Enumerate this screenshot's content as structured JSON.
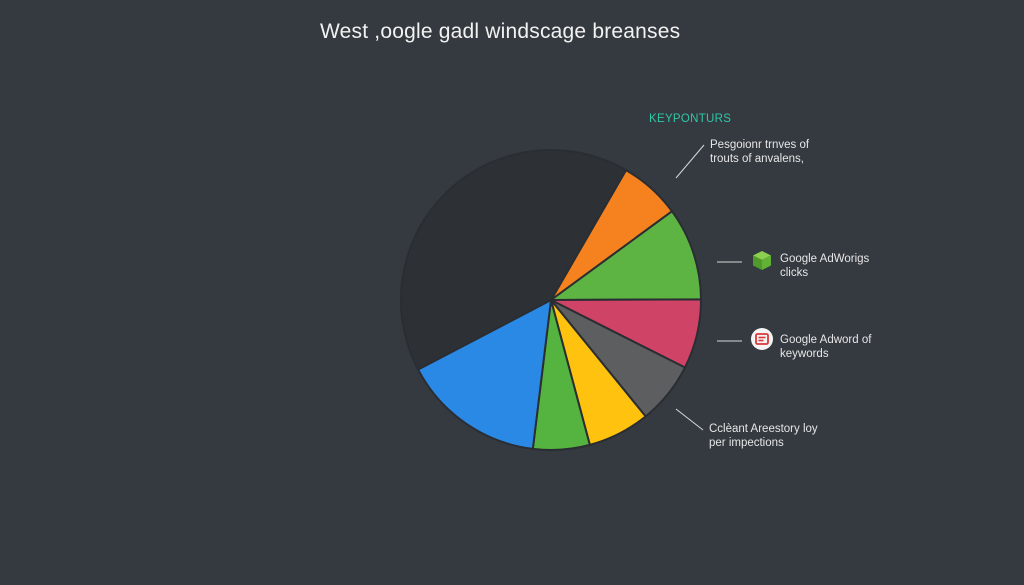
{
  "chart_data": {
    "type": "pie",
    "title": "West ,oogle gadl windscage breanses",
    "legend_heading": "KEYPONTURS",
    "slices": [
      {
        "color": "#f5821f",
        "value": 0.066
      },
      {
        "color": "#5db443",
        "value": 0.1
      },
      {
        "color": "#cf4466",
        "value": 0.075
      },
      {
        "color": "#5d5e5f",
        "value": 0.067
      },
      {
        "color": "#ffc20e",
        "value": 0.067
      },
      {
        "color": "#55b340",
        "value": 0.061
      },
      {
        "color": "#2b89e6",
        "value": 0.154
      },
      {
        "color": "#2d3136",
        "value": 0.41
      }
    ],
    "annotations": [
      {
        "lines": [
          "Pesgoionr trnves of",
          "trouts of anvalens,"
        ]
      },
      {
        "lines": [
          "Google AdWorigs",
          "clicks"
        ],
        "icon": "green-cube-icon"
      },
      {
        "lines": [
          "Google Adword of",
          "keywords"
        ],
        "icon": "red-badge-icon"
      },
      {
        "lines": [
          "Cclèant Areestory loy",
          "per impections"
        ]
      }
    ]
  }
}
